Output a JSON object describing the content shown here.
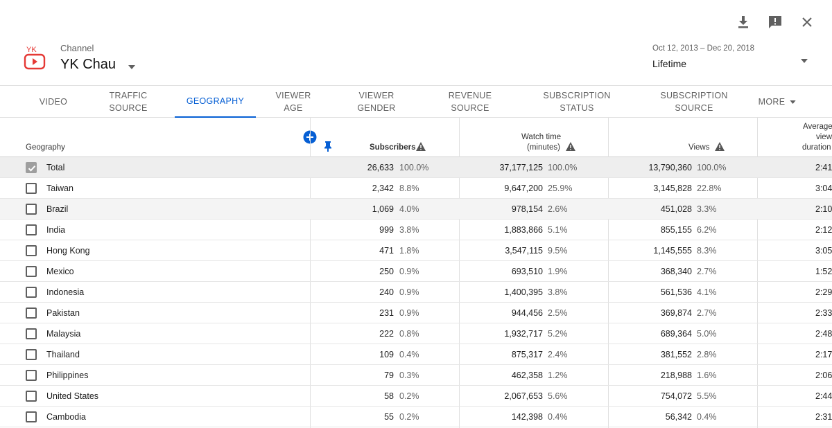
{
  "header": {
    "channel_label": "Channel",
    "channel_name": "YK Chau",
    "logo_text": "YK",
    "date_range": "Oct 12, 2013 – Dec 20, 2018",
    "period": "Lifetime"
  },
  "tabs": [
    {
      "label": "VIDEO",
      "active": false
    },
    {
      "label": "TRAFFIC\nSOURCE",
      "active": false
    },
    {
      "label": "GEOGRAPHY",
      "active": true
    },
    {
      "label": "VIEWER\nAGE",
      "active": false
    },
    {
      "label": "VIEWER\nGENDER",
      "active": false
    },
    {
      "label": "REVENUE\nSOURCE",
      "active": false
    },
    {
      "label": "SUBSCRIPTION\nSTATUS",
      "active": false
    },
    {
      "label": "SUBSCRIPTION\nSOURCE",
      "active": false
    },
    {
      "label": "MORE",
      "active": false
    }
  ],
  "table": {
    "headers": {
      "geography": "Geography",
      "subscribers": "Subscribers",
      "watch_time_1": "Watch time",
      "watch_time_2": "(minutes)",
      "views": "Views",
      "avg_1": "Average",
      "avg_2": "view",
      "avg_3": "duration"
    },
    "rows": [
      {
        "name": "Total",
        "subs": "26,633",
        "subs_pct": "100.0%",
        "watch": "37,177,125",
        "watch_pct": "100.0%",
        "views": "13,790,360",
        "views_pct": "100.0%",
        "avg": "2:41"
      },
      {
        "name": "Taiwan",
        "subs": "2,342",
        "subs_pct": "8.8%",
        "watch": "9,647,200",
        "watch_pct": "25.9%",
        "views": "3,145,828",
        "views_pct": "22.8%",
        "avg": "3:04"
      },
      {
        "name": "Brazil",
        "subs": "1,069",
        "subs_pct": "4.0%",
        "watch": "978,154",
        "watch_pct": "2.6%",
        "views": "451,028",
        "views_pct": "3.3%",
        "avg": "2:10"
      },
      {
        "name": "India",
        "subs": "999",
        "subs_pct": "3.8%",
        "watch": "1,883,866",
        "watch_pct": "5.1%",
        "views": "855,155",
        "views_pct": "6.2%",
        "avg": "2:12"
      },
      {
        "name": "Hong Kong",
        "subs": "471",
        "subs_pct": "1.8%",
        "watch": "3,547,115",
        "watch_pct": "9.5%",
        "views": "1,145,555",
        "views_pct": "8.3%",
        "avg": "3:05"
      },
      {
        "name": "Mexico",
        "subs": "250",
        "subs_pct": "0.9%",
        "watch": "693,510",
        "watch_pct": "1.9%",
        "views": "368,340",
        "views_pct": "2.7%",
        "avg": "1:52"
      },
      {
        "name": "Indonesia",
        "subs": "240",
        "subs_pct": "0.9%",
        "watch": "1,400,395",
        "watch_pct": "3.8%",
        "views": "561,536",
        "views_pct": "4.1%",
        "avg": "2:29"
      },
      {
        "name": "Pakistan",
        "subs": "231",
        "subs_pct": "0.9%",
        "watch": "944,456",
        "watch_pct": "2.5%",
        "views": "369,874",
        "views_pct": "2.7%",
        "avg": "2:33"
      },
      {
        "name": "Malaysia",
        "subs": "222",
        "subs_pct": "0.8%",
        "watch": "1,932,717",
        "watch_pct": "5.2%",
        "views": "689,364",
        "views_pct": "5.0%",
        "avg": "2:48"
      },
      {
        "name": "Thailand",
        "subs": "109",
        "subs_pct": "0.4%",
        "watch": "875,317",
        "watch_pct": "2.4%",
        "views": "381,552",
        "views_pct": "2.8%",
        "avg": "2:17"
      },
      {
        "name": "Philippines",
        "subs": "79",
        "subs_pct": "0.3%",
        "watch": "462,358",
        "watch_pct": "1.2%",
        "views": "218,988",
        "views_pct": "1.6%",
        "avg": "2:06"
      },
      {
        "name": "United States",
        "subs": "58",
        "subs_pct": "0.2%",
        "watch": "2,067,653",
        "watch_pct": "5.6%",
        "views": "754,072",
        "views_pct": "5.5%",
        "avg": "2:44"
      },
      {
        "name": "Cambodia",
        "subs": "55",
        "subs_pct": "0.2%",
        "watch": "142,398",
        "watch_pct": "0.4%",
        "views": "56,342",
        "views_pct": "0.4%",
        "avg": "2:31"
      }
    ]
  },
  "colors": {
    "accent": "#065fd4",
    "logo_red": "#e53935"
  },
  "icons": [
    "download-icon",
    "feedback-icon",
    "close-icon",
    "dropdown-caret-icon",
    "add-column-icon",
    "pin-icon",
    "warning-icon",
    "checkbox-icon"
  ]
}
